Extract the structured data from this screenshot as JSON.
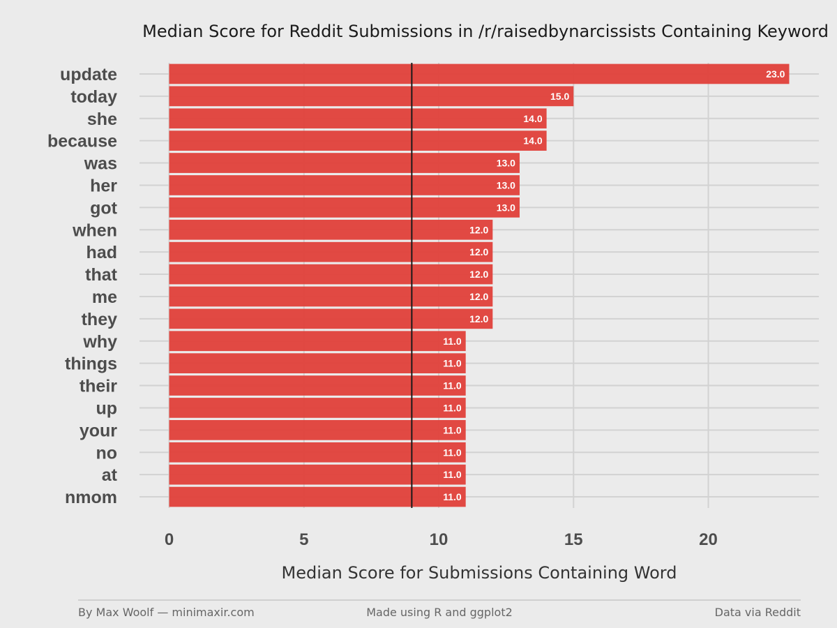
{
  "colors": {
    "background": "#ebebeb",
    "bar": "#e0403a",
    "grid": "#d2d2d2",
    "reference_line": "#1a1a1a"
  },
  "chart_data": {
    "type": "bar",
    "orientation": "horizontal",
    "title": "Median Score for Reddit Submissions in /r/raisedbynarcissists Containing Keyword",
    "xlabel": "Median Score for Submissions Containing Word",
    "ylabel": "",
    "categories": [
      "update",
      "today",
      "she",
      "because",
      "was",
      "her",
      "got",
      "when",
      "had",
      "that",
      "me",
      "they",
      "why",
      "things",
      "their",
      "up",
      "your",
      "no",
      "at",
      "nmom"
    ],
    "values": [
      23.0,
      15.0,
      14.0,
      14.0,
      13.0,
      13.0,
      13.0,
      12.0,
      12.0,
      12.0,
      12.0,
      12.0,
      11.0,
      11.0,
      11.0,
      11.0,
      11.0,
      11.0,
      11.0,
      11.0
    ],
    "data_labels": [
      "23.0",
      "15.0",
      "14.0",
      "14.0",
      "13.0",
      "13.0",
      "13.0",
      "12.0",
      "12.0",
      "12.0",
      "12.0",
      "12.0",
      "11.0",
      "11.0",
      "11.0",
      "11.0",
      "11.0",
      "11.0",
      "11.0",
      "11.0"
    ],
    "xticks": [
      0,
      5,
      10,
      15,
      20
    ],
    "xtick_labels": [
      "0",
      "5",
      "10",
      "15",
      "20"
    ],
    "xlim": [
      -1.1,
      24.1
    ],
    "reference_line_value": 9,
    "grid": true,
    "legend": "none"
  },
  "footer": {
    "left": "By Max Woolf — minimaxir.com",
    "center": "Made using R and ggplot2",
    "right": "Data via Reddit"
  }
}
